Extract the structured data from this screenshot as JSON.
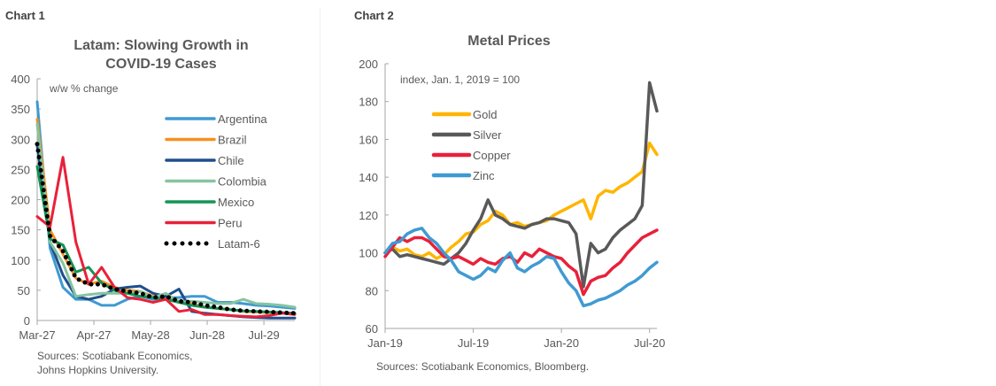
{
  "chart_data": [
    {
      "label": "Chart 1",
      "type": "line",
      "title": "Latam: Slowing Growth in COVID-19 Cases",
      "title_lines": [
        "Latam: Slowing Growth in",
        "COVID-19 Cases"
      ],
      "annotation": "w/w % change",
      "xlabel": "",
      "ylabel": "",
      "ylim": [
        0,
        400
      ],
      "yticks": [
        0,
        50,
        100,
        150,
        200,
        250,
        300,
        350,
        400
      ],
      "xtick_labels": [
        "Mar-27",
        "Apr-27",
        "May-28",
        "Jun-28",
        "Jul-29"
      ],
      "xtick_index": [
        0,
        4.4,
        8.8,
        13.2,
        17.6
      ],
      "x_points": 21,
      "legend_position": "right",
      "source": [
        "Sources: Scotiabank Economics,",
        "Johns Hopkins University."
      ],
      "series": [
        {
          "name": "Argentina",
          "color": "#3f9ad2",
          "style": "solid",
          "values": [
            362,
            120,
            55,
            35,
            35,
            25,
            25,
            35,
            40,
            35,
            38,
            38,
            40,
            40,
            30,
            30,
            28,
            25,
            24,
            22,
            20
          ]
        },
        {
          "name": "Brazil",
          "color": "#f7901e",
          "style": "solid",
          "values": [
            333,
            150,
            110,
            70,
            60,
            65,
            55,
            50,
            48,
            40,
            38,
            32,
            28,
            22,
            20,
            18,
            15,
            14,
            13,
            12,
            11
          ]
        },
        {
          "name": "Chile",
          "color": "#1f4e8c",
          "style": "solid",
          "values": [
            290,
            130,
            75,
            40,
            35,
            40,
            52,
            55,
            57,
            45,
            40,
            52,
            15,
            12,
            10,
            8,
            6,
            5,
            4,
            4,
            4
          ]
        },
        {
          "name": "Colombia",
          "color": "#86c4a0",
          "style": "solid",
          "values": [
            325,
            130,
            95,
            40,
            43,
            45,
            45,
            45,
            48,
            38,
            45,
            30,
            32,
            30,
            28,
            28,
            35,
            28,
            27,
            25,
            22
          ]
        },
        {
          "name": "Mexico",
          "color": "#149454",
          "style": "solid",
          "values": [
            255,
            135,
            125,
            80,
            88,
            62,
            50,
            45,
            40,
            38,
            35,
            30,
            25,
            22,
            20,
            18,
            16,
            15,
            14,
            13,
            12
          ]
        },
        {
          "name": "Peru",
          "color": "#e8213a",
          "style": "solid",
          "values": [
            172,
            155,
            270,
            130,
            60,
            88,
            55,
            38,
            35,
            30,
            35,
            15,
            18,
            10,
            10,
            8,
            7,
            6,
            8,
            12,
            10
          ]
        },
        {
          "name": "Latam-6",
          "color": "#000000",
          "style": "dotted",
          "values": [
            292,
            140,
            115,
            70,
            60,
            60,
            52,
            48,
            45,
            38,
            40,
            32,
            30,
            25,
            22,
            18,
            16,
            15,
            14,
            13,
            12
          ]
        }
      ]
    },
    {
      "label": "Chart 2",
      "type": "line",
      "title": "Metal Prices",
      "annotation": "index, Jan. 1, 2019 = 100",
      "xlabel": "",
      "ylabel": "",
      "ylim": [
        60,
        200
      ],
      "yticks": [
        60,
        80,
        100,
        120,
        140,
        160,
        180,
        200
      ],
      "xtick_labels": [
        "Jan-19",
        "Jul-19",
        "Jan-20",
        "Jul-20"
      ],
      "xtick_index": [
        0,
        12,
        24,
        36
      ],
      "x_points": 38,
      "x_unit": "half-month",
      "legend_position": "top-left",
      "source": "Sources: Scotiabank Economics, Bloomberg.",
      "series": [
        {
          "name": "Gold",
          "color": "#ffb500",
          "style": "solid",
          "values": [
            100,
            103,
            101,
            102,
            99,
            98,
            100,
            97,
            99,
            103,
            106,
            110,
            111,
            115,
            117,
            122,
            120,
            115,
            116,
            114,
            115,
            116,
            117,
            120,
            122,
            124,
            126,
            128,
            118,
            130,
            133,
            132,
            135,
            137,
            140,
            143,
            158,
            152
          ]
        },
        {
          "name": "Silver",
          "color": "#595959",
          "style": "solid",
          "values": [
            100,
            102,
            98,
            99,
            98,
            97,
            96,
            95,
            94,
            97,
            100,
            105,
            112,
            118,
            128,
            120,
            118,
            115,
            114,
            113,
            115,
            116,
            118,
            118,
            117,
            116,
            110,
            82,
            105,
            100,
            102,
            108,
            112,
            115,
            118,
            125,
            190,
            175
          ]
        },
        {
          "name": "Copper",
          "color": "#e8213a",
          "style": "solid",
          "values": [
            98,
            103,
            108,
            106,
            108,
            108,
            106,
            102,
            98,
            97,
            98,
            96,
            94,
            97,
            95,
            94,
            97,
            98,
            95,
            100,
            98,
            102,
            100,
            98,
            97,
            93,
            90,
            78,
            85,
            87,
            88,
            92,
            95,
            100,
            104,
            108,
            110,
            112
          ]
        },
        {
          "name": "Zinc",
          "color": "#3f9ad2",
          "style": "solid",
          "values": [
            100,
            105,
            106,
            110,
            112,
            113,
            108,
            105,
            100,
            96,
            90,
            88,
            86,
            88,
            92,
            90,
            96,
            100,
            92,
            90,
            93,
            95,
            98,
            97,
            90,
            84,
            80,
            72,
            73,
            75,
            76,
            78,
            80,
            83,
            85,
            88,
            92,
            95
          ]
        }
      ]
    }
  ]
}
